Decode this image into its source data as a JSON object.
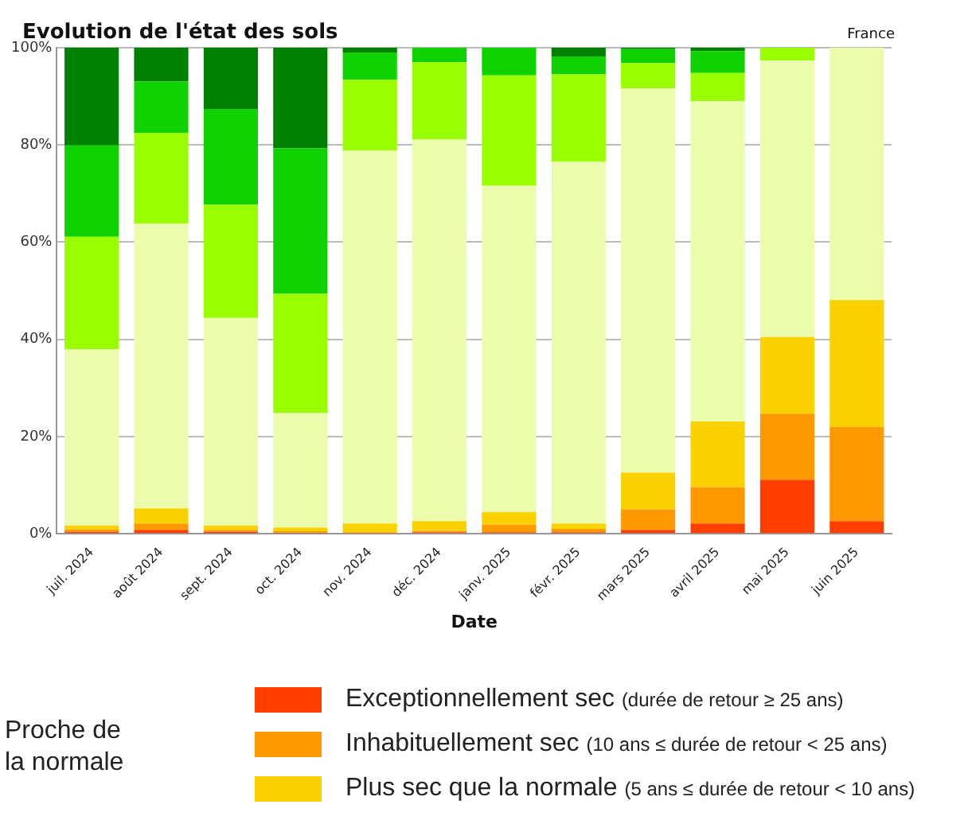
{
  "chart_data": {
    "type": "bar",
    "title": "Evolution de l'état des sols",
    "subtitle": "France",
    "xlabel": "Date",
    "categories": [
      "juil. 2024",
      "août 2024",
      "sept. 2024",
      "oct. 2024",
      "nov. 2024",
      "déc. 2024",
      "janv. 2025",
      "févr. 2025",
      "mars 2025",
      "avril 2025",
      "mai 2025",
      "juin 2025"
    ],
    "stacked": true,
    "series": [
      {
        "name": "Exceptionnellement sec (durée de retour ≥ 25 ans)",
        "color": "#ff3f00",
        "values": [
          0.4,
          0.8,
          0.4,
          0.2,
          0.1,
          0.3,
          0.3,
          0.3,
          0.8,
          2.1,
          11.1,
          2.6
        ]
      },
      {
        "name": "Inhabituellement sec (10 ans ≤ durée de retour < 25 ans)",
        "color": "#ff9900",
        "values": [
          0.5,
          1.3,
          0.4,
          0.3,
          0.2,
          0.3,
          1.6,
          0.7,
          4.2,
          7.5,
          13.6,
          19.4
        ]
      },
      {
        "name": "Plus sec que la normale (5 ans ≤ durée de retour < 10 ans)",
        "color": "#fad200",
        "values": [
          0.8,
          3.1,
          0.9,
          0.8,
          1.8,
          2.0,
          2.6,
          1.1,
          7.6,
          13.5,
          15.8,
          26.1
        ]
      },
      {
        "color": "#ebfcac",
        "values": [
          36.3,
          58.6,
          42.7,
          23.6,
          76.7,
          78.5,
          67.1,
          74.4,
          79.0,
          65.9,
          56.9,
          51.9
        ]
      },
      {
        "color": "#99ff00",
        "values": [
          23.1,
          18.7,
          23.3,
          24.5,
          14.6,
          15.9,
          22.7,
          18.0,
          5.2,
          5.8,
          2.6,
          0
        ]
      },
      {
        "color": "#10d200",
        "values": [
          18.8,
          10.6,
          19.7,
          29.9,
          5.6,
          3.0,
          5.7,
          3.7,
          2.9,
          4.5,
          0,
          0
        ]
      },
      {
        "color": "#008000",
        "values": [
          20.1,
          6.9,
          12.6,
          20.7,
          1.0,
          0,
          0,
          1.8,
          0.3,
          0.7,
          0,
          0
        ]
      }
    ],
    "ylim": [
      0,
      100
    ],
    "yticks": [
      {
        "value": 0,
        "label": "0%"
      },
      {
        "value": 20,
        "label": "20%"
      },
      {
        "value": 40,
        "label": "40%"
      },
      {
        "value": 60,
        "label": "60%"
      },
      {
        "value": 80,
        "label": "80%"
      },
      {
        "value": 100,
        "label": "100%"
      }
    ],
    "grid": "y",
    "legend": "bottom",
    "annotations": [
      "Proche de la normale"
    ]
  }
}
